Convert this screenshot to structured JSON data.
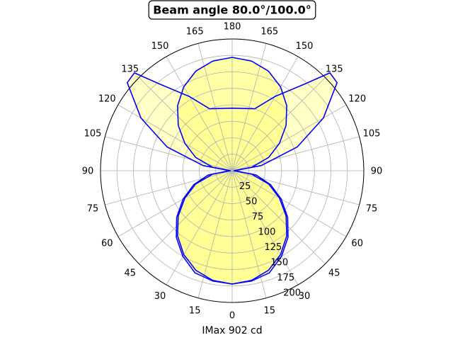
{
  "chart_data": {
    "type": "polar-area",
    "title": "Beam angle 80.0°/100.0°",
    "xlabel": "IMax 902 cd",
    "angular_tick_labels": [
      "0",
      "15",
      "30",
      "45",
      "60",
      "75",
      "90",
      "105",
      "120",
      "135",
      "150",
      "165",
      "180",
      "165",
      "150",
      "135",
      "120",
      "105",
      "90",
      "75",
      "60",
      "45",
      "30",
      "15"
    ],
    "radial_tick_labels": [
      "25",
      "50",
      "75",
      "100",
      "125",
      "150",
      "175",
      "200"
    ],
    "radial_ticks": [
      25,
      50,
      75,
      100,
      125,
      150,
      175,
      200
    ],
    "rlim": [
      0,
      200
    ],
    "grid": true,
    "series": [
      {
        "color": "#0000ff",
        "fill": "#ffff80",
        "angles_deg": [
          0,
          10,
          20,
          30,
          40,
          50,
          60,
          70,
          80,
          90,
          100,
          110,
          120,
          130,
          135,
          140,
          150,
          160,
          170,
          180
        ],
        "r": [
          172,
          170,
          165,
          150,
          132,
          110,
          86,
          62,
          37,
          3,
          45,
          105,
          160,
          208,
          210,
          172,
          130,
          100,
          96,
          95
        ]
      },
      {
        "color": "#0000ff",
        "fill": "#ffff80",
        "angles_deg": [
          0,
          10,
          20,
          30,
          40,
          50,
          60,
          70,
          80,
          90,
          100,
          110,
          120,
          130,
          140,
          150,
          160,
          170,
          180
        ],
        "r": [
          172,
          169,
          161,
          147,
          129,
          107,
          83,
          59,
          30,
          3,
          30,
          59,
          83,
          107,
          129,
          147,
          161,
          169,
          172
        ]
      }
    ]
  }
}
